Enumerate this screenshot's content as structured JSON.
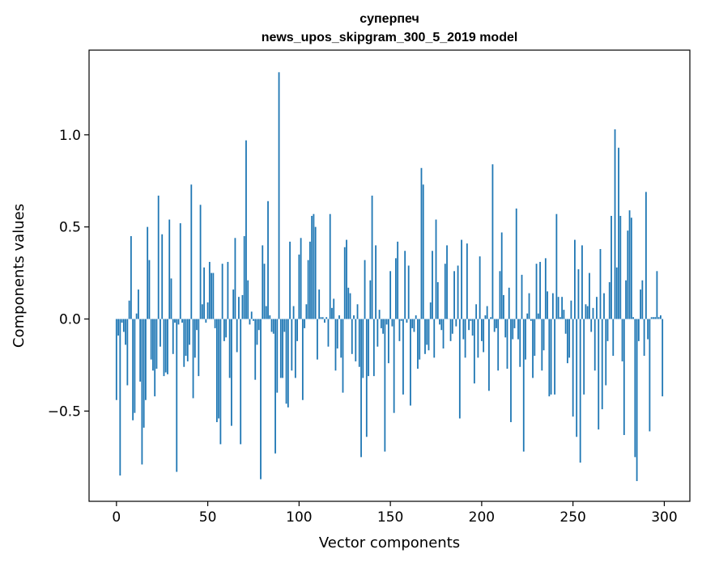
{
  "chart_data": {
    "type": "bar",
    "title_line1": "суперпеч",
    "title_line2": "news_upos_skipgram_300_5_2019 model",
    "xlabel": "Vector components",
    "ylabel": "Components values",
    "xlim": [
      -15,
      314
    ],
    "ylim": [
      -0.99,
      1.46
    ],
    "xticks": [
      0,
      50,
      100,
      150,
      200,
      250,
      300
    ],
    "xtick_labels": [
      "0",
      "50",
      "100",
      "150",
      "200",
      "250",
      "300"
    ],
    "yticks": [
      -0.5,
      0.0,
      0.5,
      1.0
    ],
    "ytick_labels": [
      "−0.5",
      "0.0",
      "0.5",
      "1.0"
    ],
    "grid": false,
    "bar_color": "#1f77b4",
    "values": [
      -0.44,
      -0.09,
      -0.85,
      -0.02,
      -0.07,
      -0.14,
      -0.36,
      0.1,
      0.45,
      -0.55,
      -0.51,
      0.03,
      0.16,
      -0.34,
      -0.79,
      -0.59,
      -0.44,
      0.5,
      0.32,
      -0.22,
      -0.28,
      -0.42,
      -0.27,
      0.67,
      -0.15,
      0.46,
      -0.31,
      -0.29,
      -0.3,
      0.54,
      0.22,
      -0.19,
      -0.02,
      -0.83,
      -0.03,
      0.52,
      -0.02,
      -0.26,
      -0.2,
      -0.23,
      -0.14,
      0.73,
      -0.43,
      -0.21,
      -0.06,
      -0.31,
      0.62,
      0.08,
      0.28,
      -0.02,
      0.09,
      0.31,
      0.25,
      0.25,
      -0.05,
      -0.56,
      -0.54,
      -0.68,
      0.3,
      -0.12,
      -0.1,
      0.31,
      -0.32,
      -0.58,
      0.16,
      0.44,
      -0.18,
      0.12,
      -0.68,
      0.13,
      0.45,
      0.97,
      0.21,
      -0.03,
      0.04,
      -0.01,
      -0.33,
      -0.14,
      -0.06,
      -0.87,
      0.4,
      0.3,
      0.07,
      0.64,
      0.02,
      -0.07,
      -0.08,
      -0.73,
      -0.4,
      1.34,
      -0.32,
      -0.32,
      -0.07,
      -0.46,
      -0.48,
      0.42,
      -0.28,
      0.07,
      -0.32,
      -0.12,
      0.35,
      0.44,
      -0.44,
      -0.05,
      0.08,
      0.32,
      0.42,
      0.56,
      0.57,
      0.5,
      -0.22,
      0.16,
      0.01,
      0.01,
      -0.02,
      0.01,
      -0.15,
      0.57,
      0.06,
      0.11,
      -0.28,
      -0.16,
      0.02,
      -0.21,
      -0.4,
      0.39,
      0.43,
      0.17,
      0.14,
      -0.19,
      0.02,
      -0.23,
      0.08,
      -0.26,
      -0.75,
      -0.32,
      0.32,
      -0.64,
      -0.31,
      0.21,
      0.67,
      -0.31,
      0.4,
      -0.15,
      0.05,
      -0.05,
      -0.08,
      -0.72,
      -0.03,
      -0.24,
      0.26,
      -0.04,
      -0.51,
      0.33,
      0.42,
      -0.12,
      -0.01,
      -0.41,
      0.37,
      -0.02,
      0.29,
      -0.47,
      -0.05,
      -0.07,
      0.02,
      -0.27,
      -0.22,
      0.82,
      0.73,
      -0.19,
      -0.14,
      -0.17,
      0.09,
      0.37,
      -0.21,
      0.54,
      0.2,
      -0.03,
      -0.06,
      -0.16,
      0.3,
      0.4,
      0.0,
      -0.12,
      -0.08,
      0.26,
      -0.04,
      0.29,
      -0.54,
      0.43,
      -0.11,
      -0.21,
      0.41,
      -0.06,
      -0.01,
      -0.09,
      -0.35,
      0.08,
      -0.21,
      0.34,
      -0.12,
      -0.18,
      0.02,
      0.07,
      -0.39,
      0.01,
      0.84,
      -0.07,
      -0.05,
      -0.28,
      0.26,
      0.47,
      0.13,
      -0.1,
      -0.27,
      0.17,
      -0.56,
      -0.11,
      -0.05,
      0.6,
      -0.11,
      -0.26,
      0.24,
      -0.72,
      -0.22,
      0.03,
      0.14,
      -0.01,
      -0.32,
      -0.2,
      0.3,
      0.03,
      0.31,
      -0.28,
      -0.17,
      0.33,
      0.15,
      -0.42,
      -0.41,
      0.14,
      -0.41,
      0.57,
      0.12,
      0.01,
      0.12,
      0.05,
      -0.08,
      -0.24,
      -0.21,
      0.1,
      -0.53,
      0.43,
      -0.64,
      0.27,
      -0.78,
      0.4,
      -0.41,
      0.08,
      0.07,
      0.25,
      -0.07,
      0.06,
      -0.28,
      0.12,
      -0.6,
      0.38,
      -0.49,
      0.14,
      -0.36,
      -0.12,
      0.2,
      0.56,
      -0.2,
      1.03,
      0.28,
      0.93,
      0.56,
      -0.23,
      -0.63,
      0.21,
      0.48,
      0.59,
      0.55,
      0.01,
      -0.75,
      -0.88,
      -0.12,
      0.16,
      0.21,
      -0.2,
      0.69,
      -0.11,
      -0.61,
      0.01,
      0.01,
      0.01,
      0.26,
      0.01,
      0.02,
      -0.42
    ]
  }
}
